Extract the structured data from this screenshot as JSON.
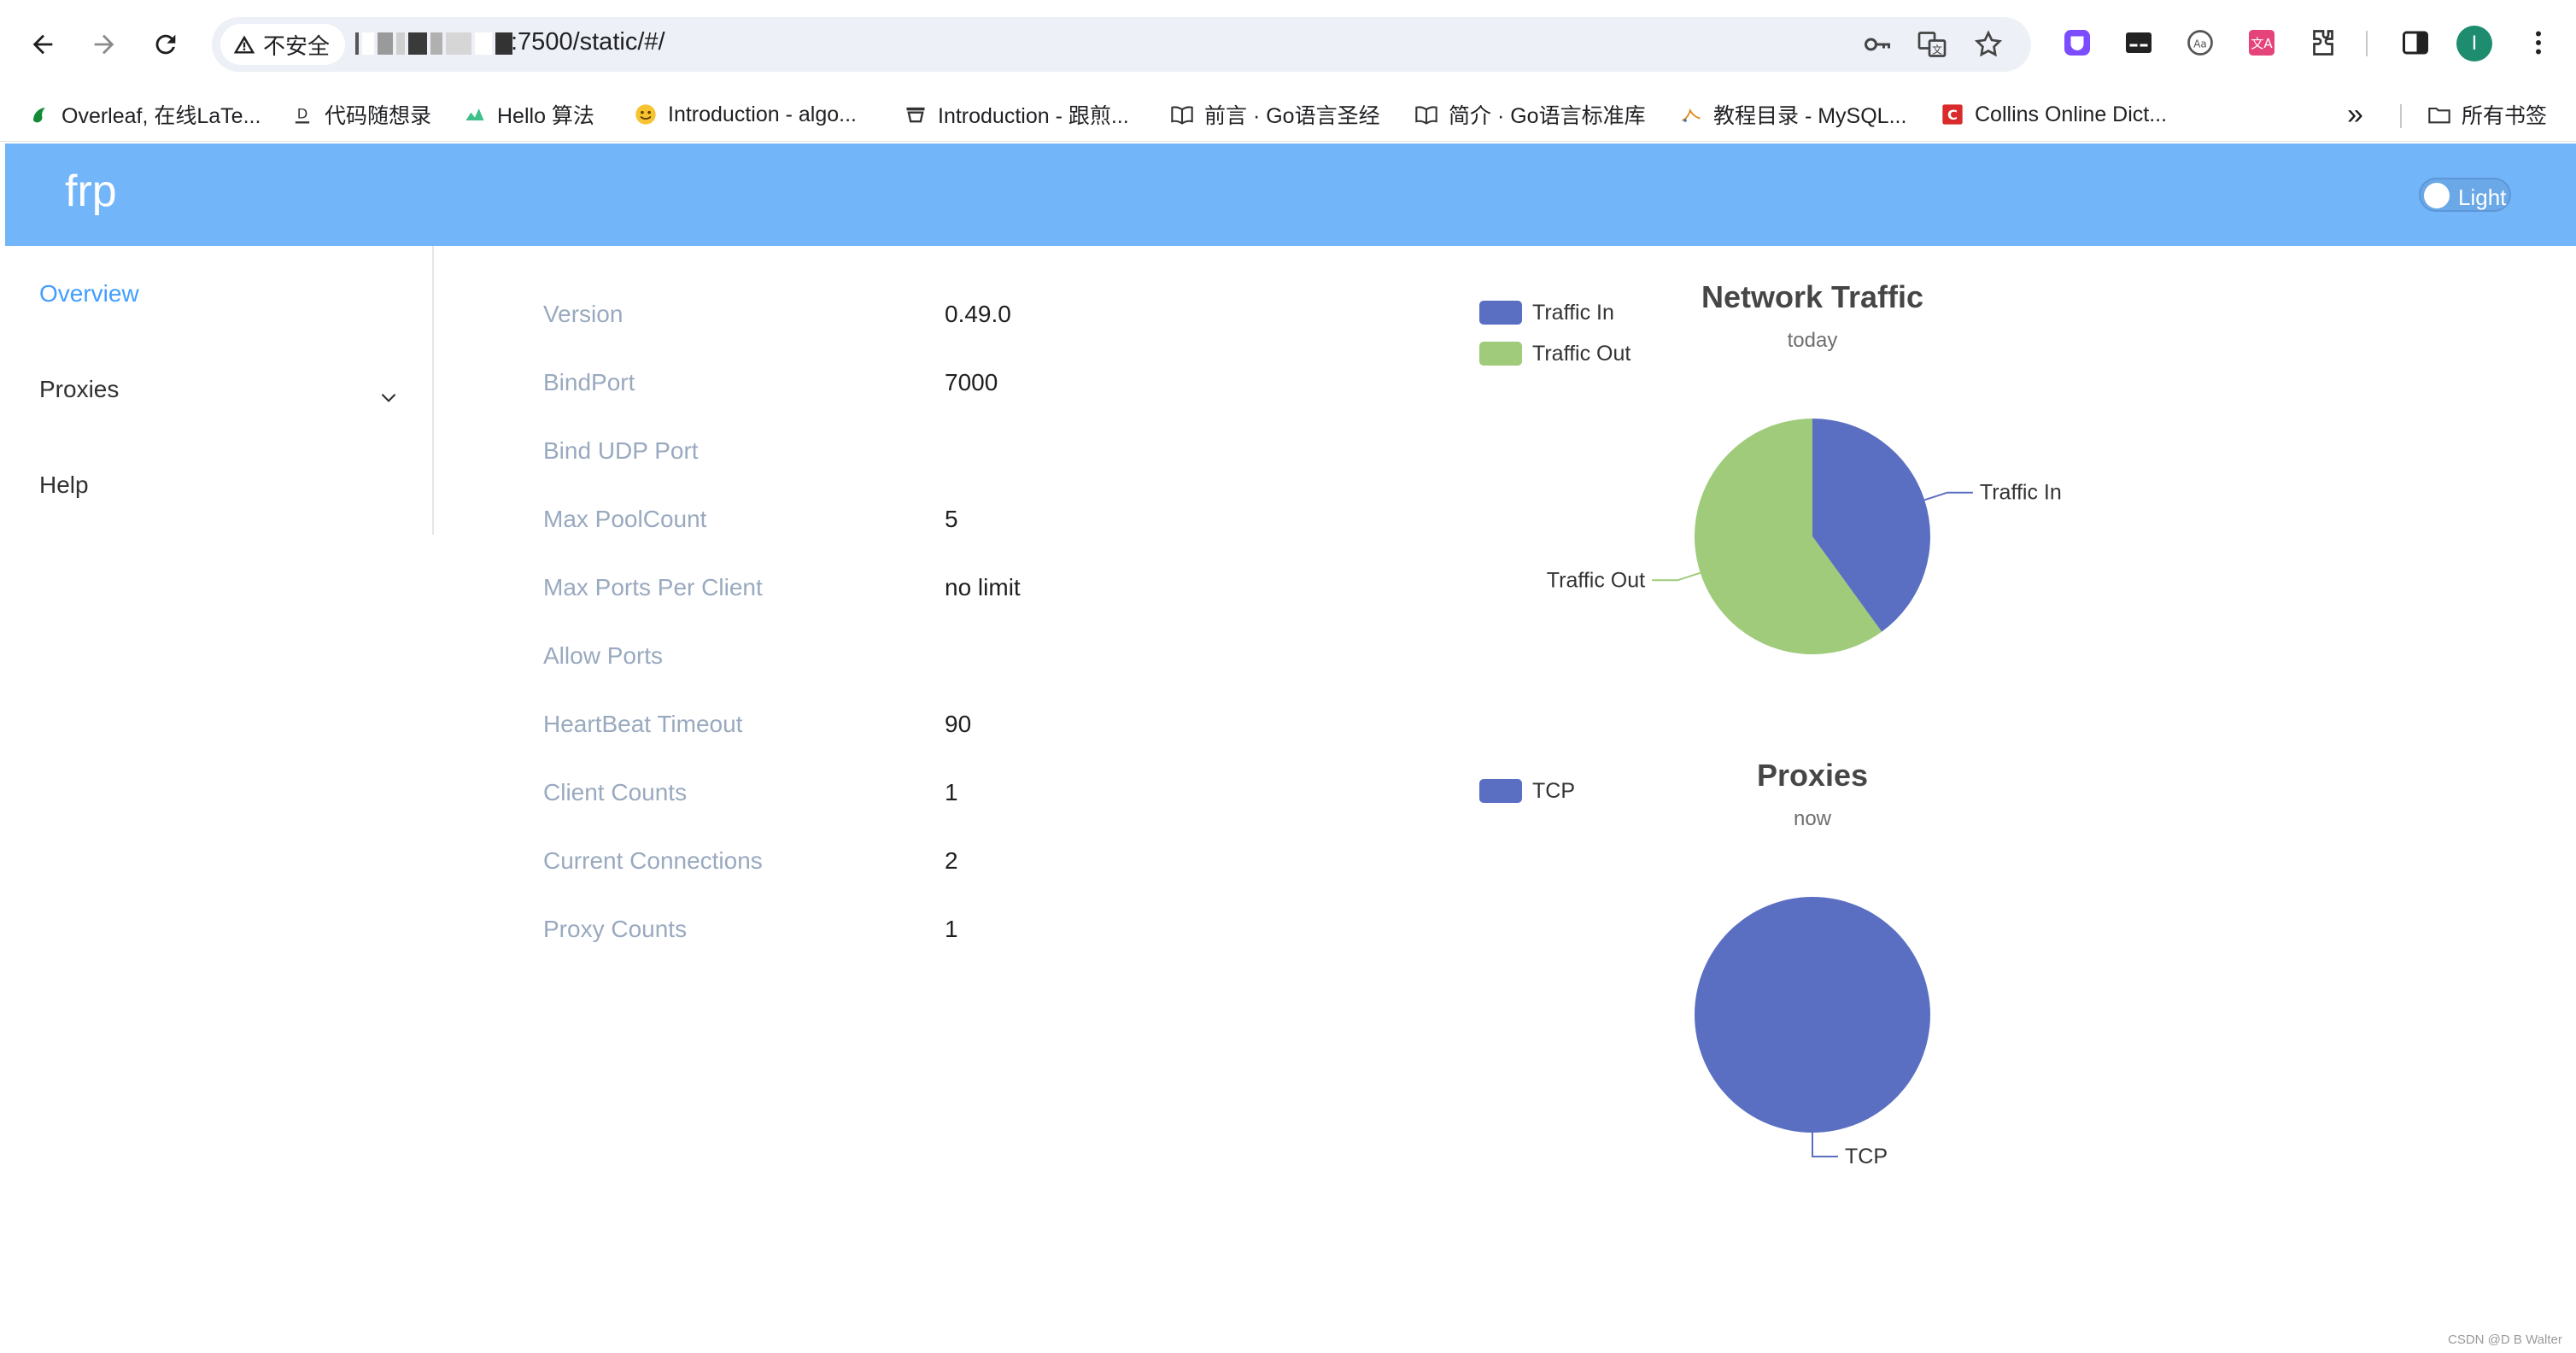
{
  "browser": {
    "security_label": "不安全",
    "url_suffix": ":7500/static/#/",
    "profile_initial": "I",
    "bookmarks": [
      {
        "label": "Overleaf, 在线LaTe..."
      },
      {
        "label": "代码随想录"
      },
      {
        "label": "Hello 算法"
      },
      {
        "label": "Introduction - algo..."
      },
      {
        "label": "Introduction - 跟煎..."
      },
      {
        "label": "前言 · Go语言圣经"
      },
      {
        "label": "简介 · Go语言标准库"
      },
      {
        "label": "教程目录 - MySQL..."
      },
      {
        "label": "Collins Online Dict..."
      }
    ],
    "more_bookmarks": "»",
    "all_bookmarks": "所有书签"
  },
  "app": {
    "title": "frp",
    "theme_label": "Light"
  },
  "sidebar": {
    "items": [
      {
        "label": "Overview",
        "active": true
      },
      {
        "label": "Proxies",
        "active": false
      },
      {
        "label": "Help",
        "active": false
      }
    ]
  },
  "overview": {
    "rows": [
      {
        "label": "Version",
        "value": "0.49.0"
      },
      {
        "label": "BindPort",
        "value": "7000"
      },
      {
        "label": "Bind UDP Port",
        "value": ""
      },
      {
        "label": "Max PoolCount",
        "value": "5"
      },
      {
        "label": "Max Ports Per Client",
        "value": "no limit"
      },
      {
        "label": "Allow Ports",
        "value": ""
      },
      {
        "label": "HeartBeat Timeout",
        "value": "90"
      },
      {
        "label": "Client Counts",
        "value": "1"
      },
      {
        "label": "Current Connections",
        "value": "2"
      },
      {
        "label": "Proxy Counts",
        "value": "1"
      }
    ]
  },
  "chart_data": [
    {
      "type": "pie",
      "title": "Network Traffic",
      "subtitle": "today",
      "legend": "top-left",
      "categories": [
        "Traffic In",
        "Traffic Out"
      ],
      "values": [
        40,
        60
      ],
      "colors": [
        "#5b6fc2",
        "#9fcb7b"
      ]
    },
    {
      "type": "pie",
      "title": "Proxies",
      "subtitle": "now",
      "legend": "top-left",
      "categories": [
        "TCP"
      ],
      "values": [
        1
      ],
      "colors": [
        "#5b6fc2"
      ]
    }
  ],
  "watermark": "CSDN @D B Walter"
}
